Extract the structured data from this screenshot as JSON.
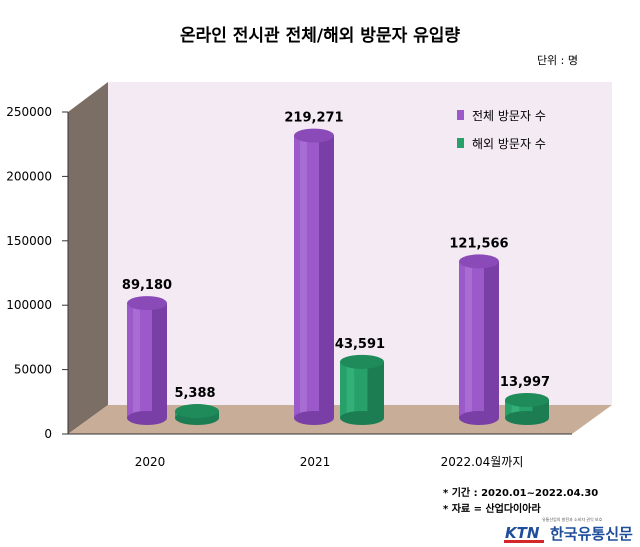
{
  "chart_data": {
    "type": "bar",
    "title": "온라인 전시관 전체/해외 방문자 유입량",
    "unit_label": "단위 : 명",
    "categories": [
      "2020",
      "2021",
      "2022.04월까지"
    ],
    "series": [
      {
        "name": "전체 방문자 수",
        "values": [
          89180,
          219271,
          121566
        ],
        "labels": [
          "89,180",
          "219,271",
          "121,566"
        ],
        "color": "#9b59c9"
      },
      {
        "name": "해외 방문자 수",
        "values": [
          5388,
          43591,
          13997
        ],
        "labels": [
          "5,388",
          "43,591",
          "13,997"
        ],
        "color": "#27a06a"
      }
    ],
    "yticks": [
      "250000",
      "200000",
      "150000",
      "100000",
      "50000",
      "0"
    ],
    "ylim": [
      0,
      250000
    ],
    "legend_position": "top-right",
    "grid": false
  },
  "footnotes": {
    "period": "* 기간 : 2020.01~2022.04.30",
    "source": "* 자료 = 산업다이아라"
  },
  "logo": {
    "brand": "KTN",
    "name": "한국유통신문",
    "tagline": "유통산업의 발전과 소비자 권익 보호"
  },
  "colors": {
    "wall": "#f4eaf4",
    "side_wall": "#7b6e64",
    "floor": "#c8ad98",
    "purple": "#9b59c9",
    "green": "#27a06a"
  }
}
